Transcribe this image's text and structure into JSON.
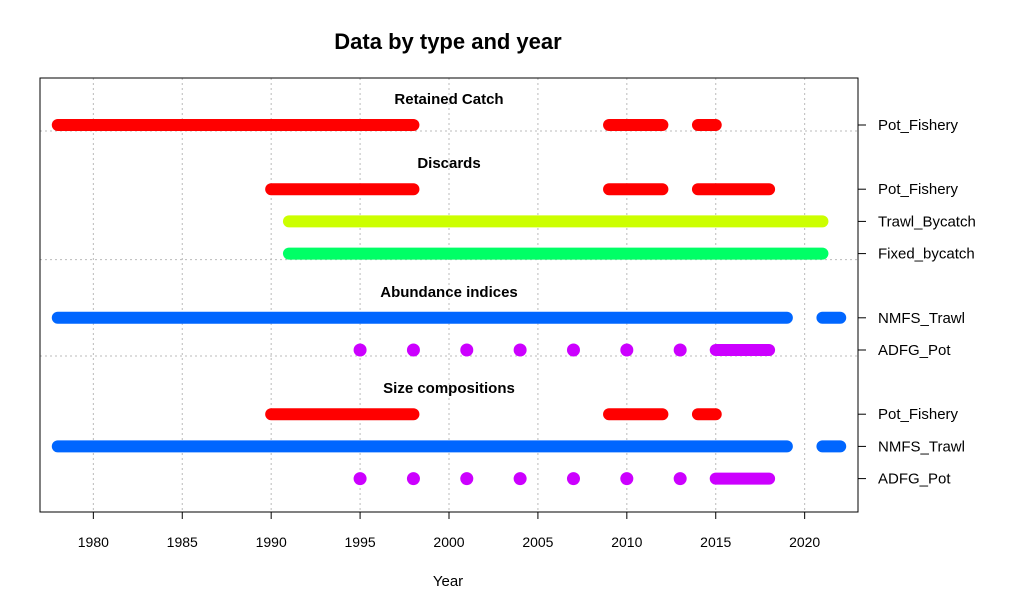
{
  "chart_data": {
    "type": "timeline",
    "title": "Data by type and year",
    "xlabel": "Year",
    "xlim": [
      1977,
      2023
    ],
    "x_ticks": [
      1980,
      1985,
      1990,
      1995,
      2000,
      2005,
      2010,
      2015,
      2020
    ],
    "grid": true,
    "groups": [
      {
        "name": "Retained Catch",
        "rows": [
          {
            "label": "Pot_Fishery",
            "color": "#FF0000",
            "segments": [
              [
                1978,
                1998
              ],
              [
                2009,
                2012
              ],
              [
                2014,
                2015
              ]
            ],
            "points": []
          }
        ]
      },
      {
        "name": "Discards",
        "rows": [
          {
            "label": "Pot_Fishery",
            "color": "#FF0000",
            "segments": [
              [
                1990,
                1998
              ],
              [
                2009,
                2012
              ],
              [
                2014,
                2018
              ]
            ],
            "points": []
          },
          {
            "label": "Trawl_Bycatch",
            "color": "#CCFF00",
            "segments": [
              [
                1991,
                2021
              ]
            ],
            "points": []
          },
          {
            "label": "Fixed_bycatch",
            "color": "#00FF66",
            "segments": [
              [
                1991,
                2021
              ]
            ],
            "points": []
          }
        ]
      },
      {
        "name": "Abundance indices",
        "rows": [
          {
            "label": "NMFS_Trawl",
            "color": "#0066FF",
            "segments": [
              [
                1978,
                2019
              ],
              [
                2021,
                2022
              ]
            ],
            "points": []
          },
          {
            "label": "ADFG_Pot",
            "color": "#CC00FF",
            "segments": [
              [
                2015,
                2018
              ]
            ],
            "points": [
              1995,
              1998,
              2001,
              2004,
              2007,
              2010,
              2013
            ]
          }
        ]
      },
      {
        "name": "Size compositions",
        "rows": [
          {
            "label": "Pot_Fishery",
            "color": "#FF0000",
            "segments": [
              [
                1990,
                1998
              ],
              [
                2009,
                2012
              ],
              [
                2014,
                2015
              ]
            ],
            "points": []
          },
          {
            "label": "NMFS_Trawl",
            "color": "#0066FF",
            "segments": [
              [
                1978,
                2019
              ],
              [
                2021,
                2022
              ]
            ],
            "points": []
          },
          {
            "label": "ADFG_Pot",
            "color": "#CC00FF",
            "segments": [
              [
                2015,
                2018
              ]
            ],
            "points": [
              1995,
              1998,
              2001,
              2004,
              2007,
              2010,
              2013
            ]
          }
        ]
      }
    ]
  }
}
